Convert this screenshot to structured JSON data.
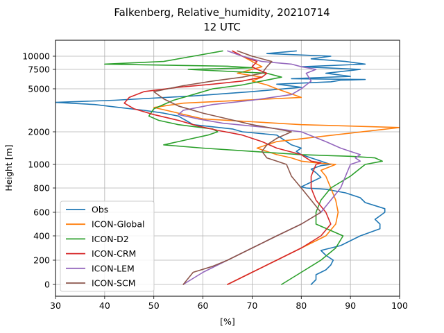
{
  "chart_data": {
    "type": "line",
    "title": "Falkenberg, Relative_humidity, 20210714",
    "subtitle": "12 UTC",
    "xlabel": "[%]",
    "ylabel": "Height [m]",
    "xlim": [
      30,
      100
    ],
    "x_ticks": [
      30,
      40,
      50,
      60,
      70,
      80,
      90,
      100
    ],
    "y_ticks": [
      0,
      200,
      400,
      600,
      800,
      1000,
      2000,
      5000,
      7500,
      10000
    ],
    "y_tick_labels": [
      "0",
      "200",
      "400",
      "600",
      "800",
      "1000",
      "2000",
      "5000",
      "7500",
      "10000"
    ],
    "grid": true,
    "legend_position": "lower-left",
    "series": [
      {
        "name": "Obs",
        "color": "#1f77b4",
        "points": [
          [
            82,
            0
          ],
          [
            83,
            40
          ],
          [
            83,
            80
          ],
          [
            85,
            120
          ],
          [
            86,
            160
          ],
          [
            86.5,
            200
          ],
          [
            85,
            240
          ],
          [
            84,
            280
          ],
          [
            86,
            300
          ],
          [
            88,
            320
          ],
          [
            90,
            360
          ],
          [
            92,
            400
          ],
          [
            94,
            430
          ],
          [
            96,
            460
          ],
          [
            96,
            500
          ],
          [
            95,
            540
          ],
          [
            96,
            570
          ],
          [
            97,
            600
          ],
          [
            97,
            630
          ],
          [
            93,
            680
          ],
          [
            92,
            720
          ],
          [
            89,
            760
          ],
          [
            85,
            790
          ],
          [
            81,
            800
          ],
          [
            80,
            810
          ],
          [
            82,
            850
          ],
          [
            84,
            890
          ],
          [
            83,
            930
          ],
          [
            82,
            960
          ],
          [
            84,
            990
          ],
          [
            86,
            1000
          ],
          [
            85,
            1050
          ],
          [
            84,
            1100
          ],
          [
            82,
            1200
          ],
          [
            80,
            1300
          ],
          [
            79,
            1400
          ],
          [
            80,
            1500
          ],
          [
            78,
            1600
          ],
          [
            77,
            1700
          ],
          [
            76,
            1800
          ],
          [
            75,
            1900
          ],
          [
            68,
            2000
          ],
          [
            66,
            2200
          ],
          [
            58,
            2500
          ],
          [
            57,
            2700
          ],
          [
            56,
            2900
          ],
          [
            55,
            3100
          ],
          [
            52,
            3300
          ],
          [
            48,
            3500
          ],
          [
            43,
            3700
          ],
          [
            38,
            3900
          ],
          [
            30,
            4050
          ],
          [
            42,
            4200
          ],
          [
            58,
            4500
          ],
          [
            70,
            4800
          ],
          [
            80,
            5200
          ],
          [
            75,
            5600
          ],
          [
            86,
            5900
          ],
          [
            88,
            6100
          ],
          [
            93,
            6200
          ],
          [
            78,
            6300
          ],
          [
            90,
            6600
          ],
          [
            85,
            7000
          ],
          [
            92,
            7500
          ],
          [
            80,
            8000
          ],
          [
            93,
            8500
          ],
          [
            89,
            9000
          ],
          [
            82,
            9500
          ],
          [
            86,
            10000
          ],
          [
            73,
            10500
          ],
          [
            79,
            11000
          ]
        ]
      },
      {
        "name": "ICON-Global",
        "color": "#ff7f0e",
        "points": [
          [
            65,
            0
          ],
          [
            70,
            100
          ],
          [
            75,
            200
          ],
          [
            80,
            300
          ],
          [
            85,
            400
          ],
          [
            87,
            500
          ],
          [
            87.5,
            600
          ],
          [
            87,
            700
          ],
          [
            86,
            800
          ],
          [
            85,
            900
          ],
          [
            84,
            950
          ],
          [
            87,
            1000
          ],
          [
            83,
            1050
          ],
          [
            80,
            1100
          ],
          [
            78,
            1200
          ],
          [
            75,
            1300
          ],
          [
            73,
            1400
          ],
          [
            71,
            1500
          ],
          [
            75,
            1700
          ],
          [
            100,
            2300
          ],
          [
            80,
            2500
          ],
          [
            70,
            2700
          ],
          [
            60,
            2900
          ],
          [
            55,
            3300
          ],
          [
            50,
            3700
          ],
          [
            56,
            4000
          ],
          [
            80,
            4400
          ],
          [
            75,
            5000
          ],
          [
            73,
            5500
          ],
          [
            70,
            6000
          ],
          [
            72,
            6500
          ],
          [
            67,
            7000
          ],
          [
            70,
            7500
          ],
          [
            72,
            8000
          ],
          [
            71,
            8500
          ],
          [
            70,
            9000
          ],
          [
            68,
            10000
          ],
          [
            66,
            11000
          ]
        ]
      },
      {
        "name": "ICON-D2",
        "color": "#2ca02c",
        "points": [
          [
            76,
            0
          ],
          [
            80,
            100
          ],
          [
            84,
            200
          ],
          [
            87,
            300
          ],
          [
            88.5,
            400
          ],
          [
            83,
            500
          ],
          [
            83,
            600
          ],
          [
            84,
            700
          ],
          [
            86,
            800
          ],
          [
            90,
            900
          ],
          [
            93,
            1000
          ],
          [
            96.5,
            1100
          ],
          [
            95,
            1200
          ],
          [
            90,
            1250
          ],
          [
            80,
            1300
          ],
          [
            70,
            1400
          ],
          [
            60,
            1500
          ],
          [
            52,
            1600
          ],
          [
            55,
            1700
          ],
          [
            58,
            1800
          ],
          [
            61,
            1900
          ],
          [
            63,
            2000
          ],
          [
            62,
            2200
          ],
          [
            55,
            2500
          ],
          [
            51,
            2800
          ],
          [
            49,
            3100
          ],
          [
            50,
            3600
          ],
          [
            54,
            4200
          ],
          [
            58,
            4600
          ],
          [
            62,
            5000
          ],
          [
            68,
            5500
          ],
          [
            72,
            6000
          ],
          [
            76,
            6500
          ],
          [
            73,
            7000
          ],
          [
            57,
            7500
          ],
          [
            70,
            7800
          ],
          [
            65,
            8100
          ],
          [
            40,
            8500
          ],
          [
            52,
            9000
          ],
          [
            58,
            10000
          ],
          [
            64,
            11000
          ]
        ]
      },
      {
        "name": "ICON-CRM",
        "color": "#d62728",
        "points": [
          [
            65,
            0
          ],
          [
            70,
            100
          ],
          [
            75,
            200
          ],
          [
            80,
            300
          ],
          [
            84,
            400
          ],
          [
            86,
            500
          ],
          [
            85,
            600
          ],
          [
            83,
            700
          ],
          [
            82,
            800
          ],
          [
            82,
            900
          ],
          [
            83,
            1000
          ],
          [
            84,
            1050
          ],
          [
            82,
            1100
          ],
          [
            80,
            1300
          ],
          [
            75,
            1500
          ],
          [
            72,
            1700
          ],
          [
            68,
            1900
          ],
          [
            63,
            2100
          ],
          [
            59,
            2400
          ],
          [
            55,
            2800
          ],
          [
            50,
            3200
          ],
          [
            46,
            3600
          ],
          [
            44,
            4000
          ],
          [
            45,
            4400
          ],
          [
            48,
            4800
          ],
          [
            55,
            5200
          ],
          [
            62,
            5600
          ],
          [
            68,
            6000
          ],
          [
            72,
            6500
          ],
          [
            73,
            7000
          ],
          [
            71,
            7500
          ],
          [
            70,
            8000
          ],
          [
            71,
            9000
          ],
          [
            68,
            10000
          ],
          [
            66,
            11000
          ]
        ]
      },
      {
        "name": "ICON-LEM",
        "color": "#9467bd",
        "points": [
          [
            56,
            0
          ],
          [
            60,
            100
          ],
          [
            65,
            200
          ],
          [
            70,
            300
          ],
          [
            75,
            400
          ],
          [
            80,
            500
          ],
          [
            84,
            600
          ],
          [
            88,
            800
          ],
          [
            90,
            1000
          ],
          [
            92,
            1100
          ],
          [
            91,
            1200
          ],
          [
            92,
            1300
          ],
          [
            90,
            1400
          ],
          [
            88,
            1500
          ],
          [
            85,
            1700
          ],
          [
            80,
            2000
          ],
          [
            73,
            2300
          ],
          [
            64,
            2600
          ],
          [
            59,
            2900
          ],
          [
            55,
            3200
          ],
          [
            56,
            3500
          ],
          [
            62,
            3900
          ],
          [
            70,
            4200
          ],
          [
            78,
            4600
          ],
          [
            80,
            5000
          ],
          [
            82,
            6000
          ],
          [
            81,
            7000
          ],
          [
            83,
            7500
          ],
          [
            80,
            8000
          ],
          [
            78,
            8500
          ],
          [
            72,
            9000
          ],
          [
            68,
            10000
          ],
          [
            65,
            11000
          ]
        ]
      },
      {
        "name": "ICON-SCM",
        "color": "#8c564b",
        "points": [
          [
            56,
            0
          ],
          [
            57,
            50
          ],
          [
            58,
            100
          ],
          [
            62,
            150
          ],
          [
            65,
            200
          ],
          [
            70,
            300
          ],
          [
            75,
            400
          ],
          [
            80,
            500
          ],
          [
            84,
            600
          ],
          [
            82,
            700
          ],
          [
            80,
            800
          ],
          [
            78,
            900
          ],
          [
            77,
            1000
          ],
          [
            75,
            1100
          ],
          [
            73,
            1200
          ],
          [
            72,
            1400
          ],
          [
            73,
            1600
          ],
          [
            75,
            1800
          ],
          [
            78,
            2000
          ],
          [
            75,
            2200
          ],
          [
            70,
            2500
          ],
          [
            65,
            2900
          ],
          [
            60,
            3300
          ],
          [
            55,
            3800
          ],
          [
            52,
            4300
          ],
          [
            50,
            4800
          ],
          [
            56,
            5400
          ],
          [
            62,
            6000
          ],
          [
            68,
            6500
          ],
          [
            72,
            7000
          ],
          [
            73,
            8000
          ],
          [
            74,
            9000
          ],
          [
            70,
            10000
          ],
          [
            67,
            11000
          ]
        ]
      }
    ]
  }
}
